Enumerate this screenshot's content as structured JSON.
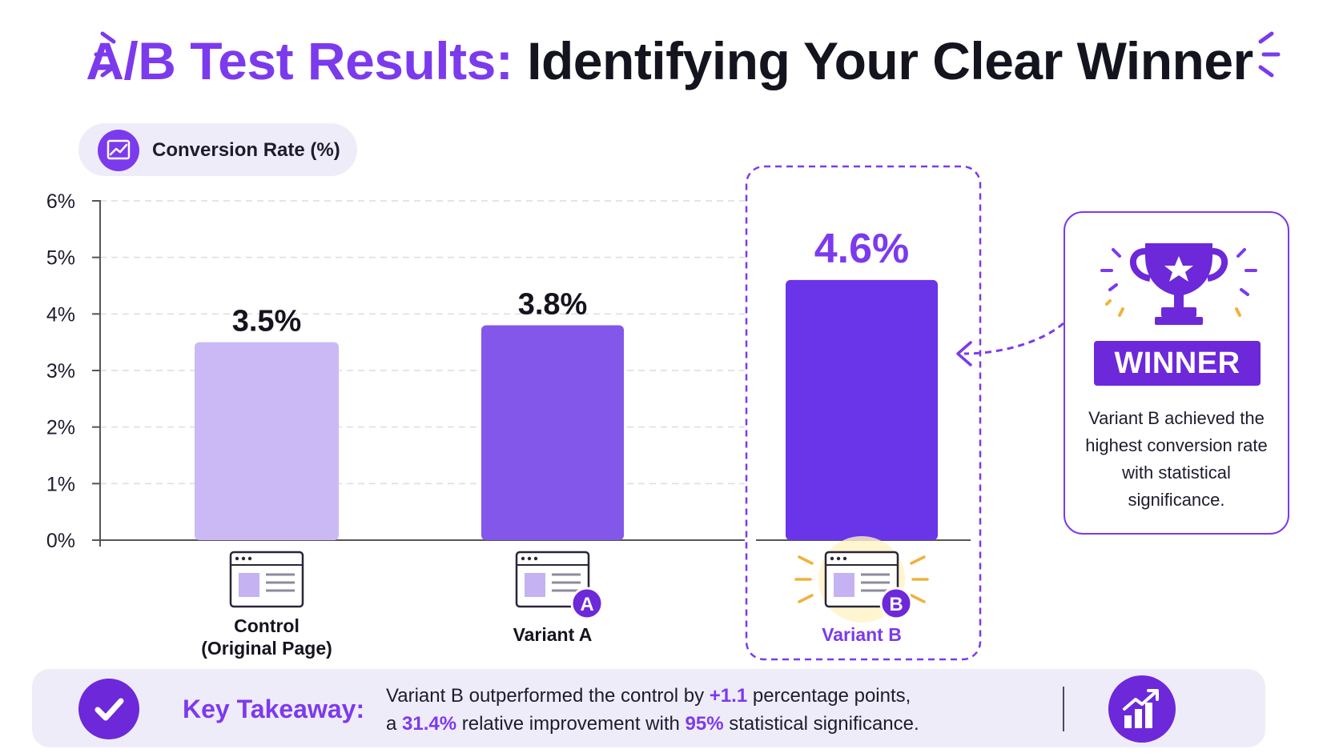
{
  "title": {
    "accent": "A/B Test Results:",
    "rest": "Identifying Your Clear Winner"
  },
  "metric_pill": {
    "label": "Conversion Rate (%)",
    "icon": "trend-chart-icon"
  },
  "chart_data": {
    "type": "bar",
    "categories": [
      "Control (Original Page)",
      "Variant A",
      "Variant B"
    ],
    "category_lines": [
      [
        "Control",
        "(Original Page)"
      ],
      [
        "Variant A"
      ],
      [
        "Variant B"
      ]
    ],
    "values": [
      3.5,
      3.8,
      4.6
    ],
    "value_labels": [
      "3.5%",
      "3.8%",
      "4.6%"
    ],
    "ylim": [
      0,
      6
    ],
    "yticks": [
      0,
      1,
      2,
      3,
      4,
      5,
      6
    ],
    "ytick_labels": [
      "0%",
      "1%",
      "2%",
      "3%",
      "4%",
      "5%",
      "6%"
    ],
    "grid": true,
    "bar_colors": [
      "#cbb9f5",
      "#8257ea",
      "#6a35e8"
    ],
    "category_badges": [
      "",
      "A",
      "B"
    ],
    "highlight": "Variant B",
    "xlabel": "",
    "ylabel": ""
  },
  "winner": {
    "badge": "WINNER",
    "text": "Variant B achieved the highest conversion rate with statistical significance.",
    "icon": "trophy-icon"
  },
  "takeaway": {
    "label": "Key Takeaway:",
    "line1_pre": "Variant B outperformed the control by ",
    "line1_value": "+1.1",
    "line1_post": " percentage points,",
    "line2_pre": "a ",
    "line2_value1": "31.4%",
    "line2_mid": " relative improvement with ",
    "line2_value2": "95%",
    "line2_post": " statistical significance."
  },
  "colors": {
    "accent": "#7c3aed",
    "accent_dark": "#6d28d9",
    "pill_bg": "#efecfa",
    "text": "#14141f"
  }
}
